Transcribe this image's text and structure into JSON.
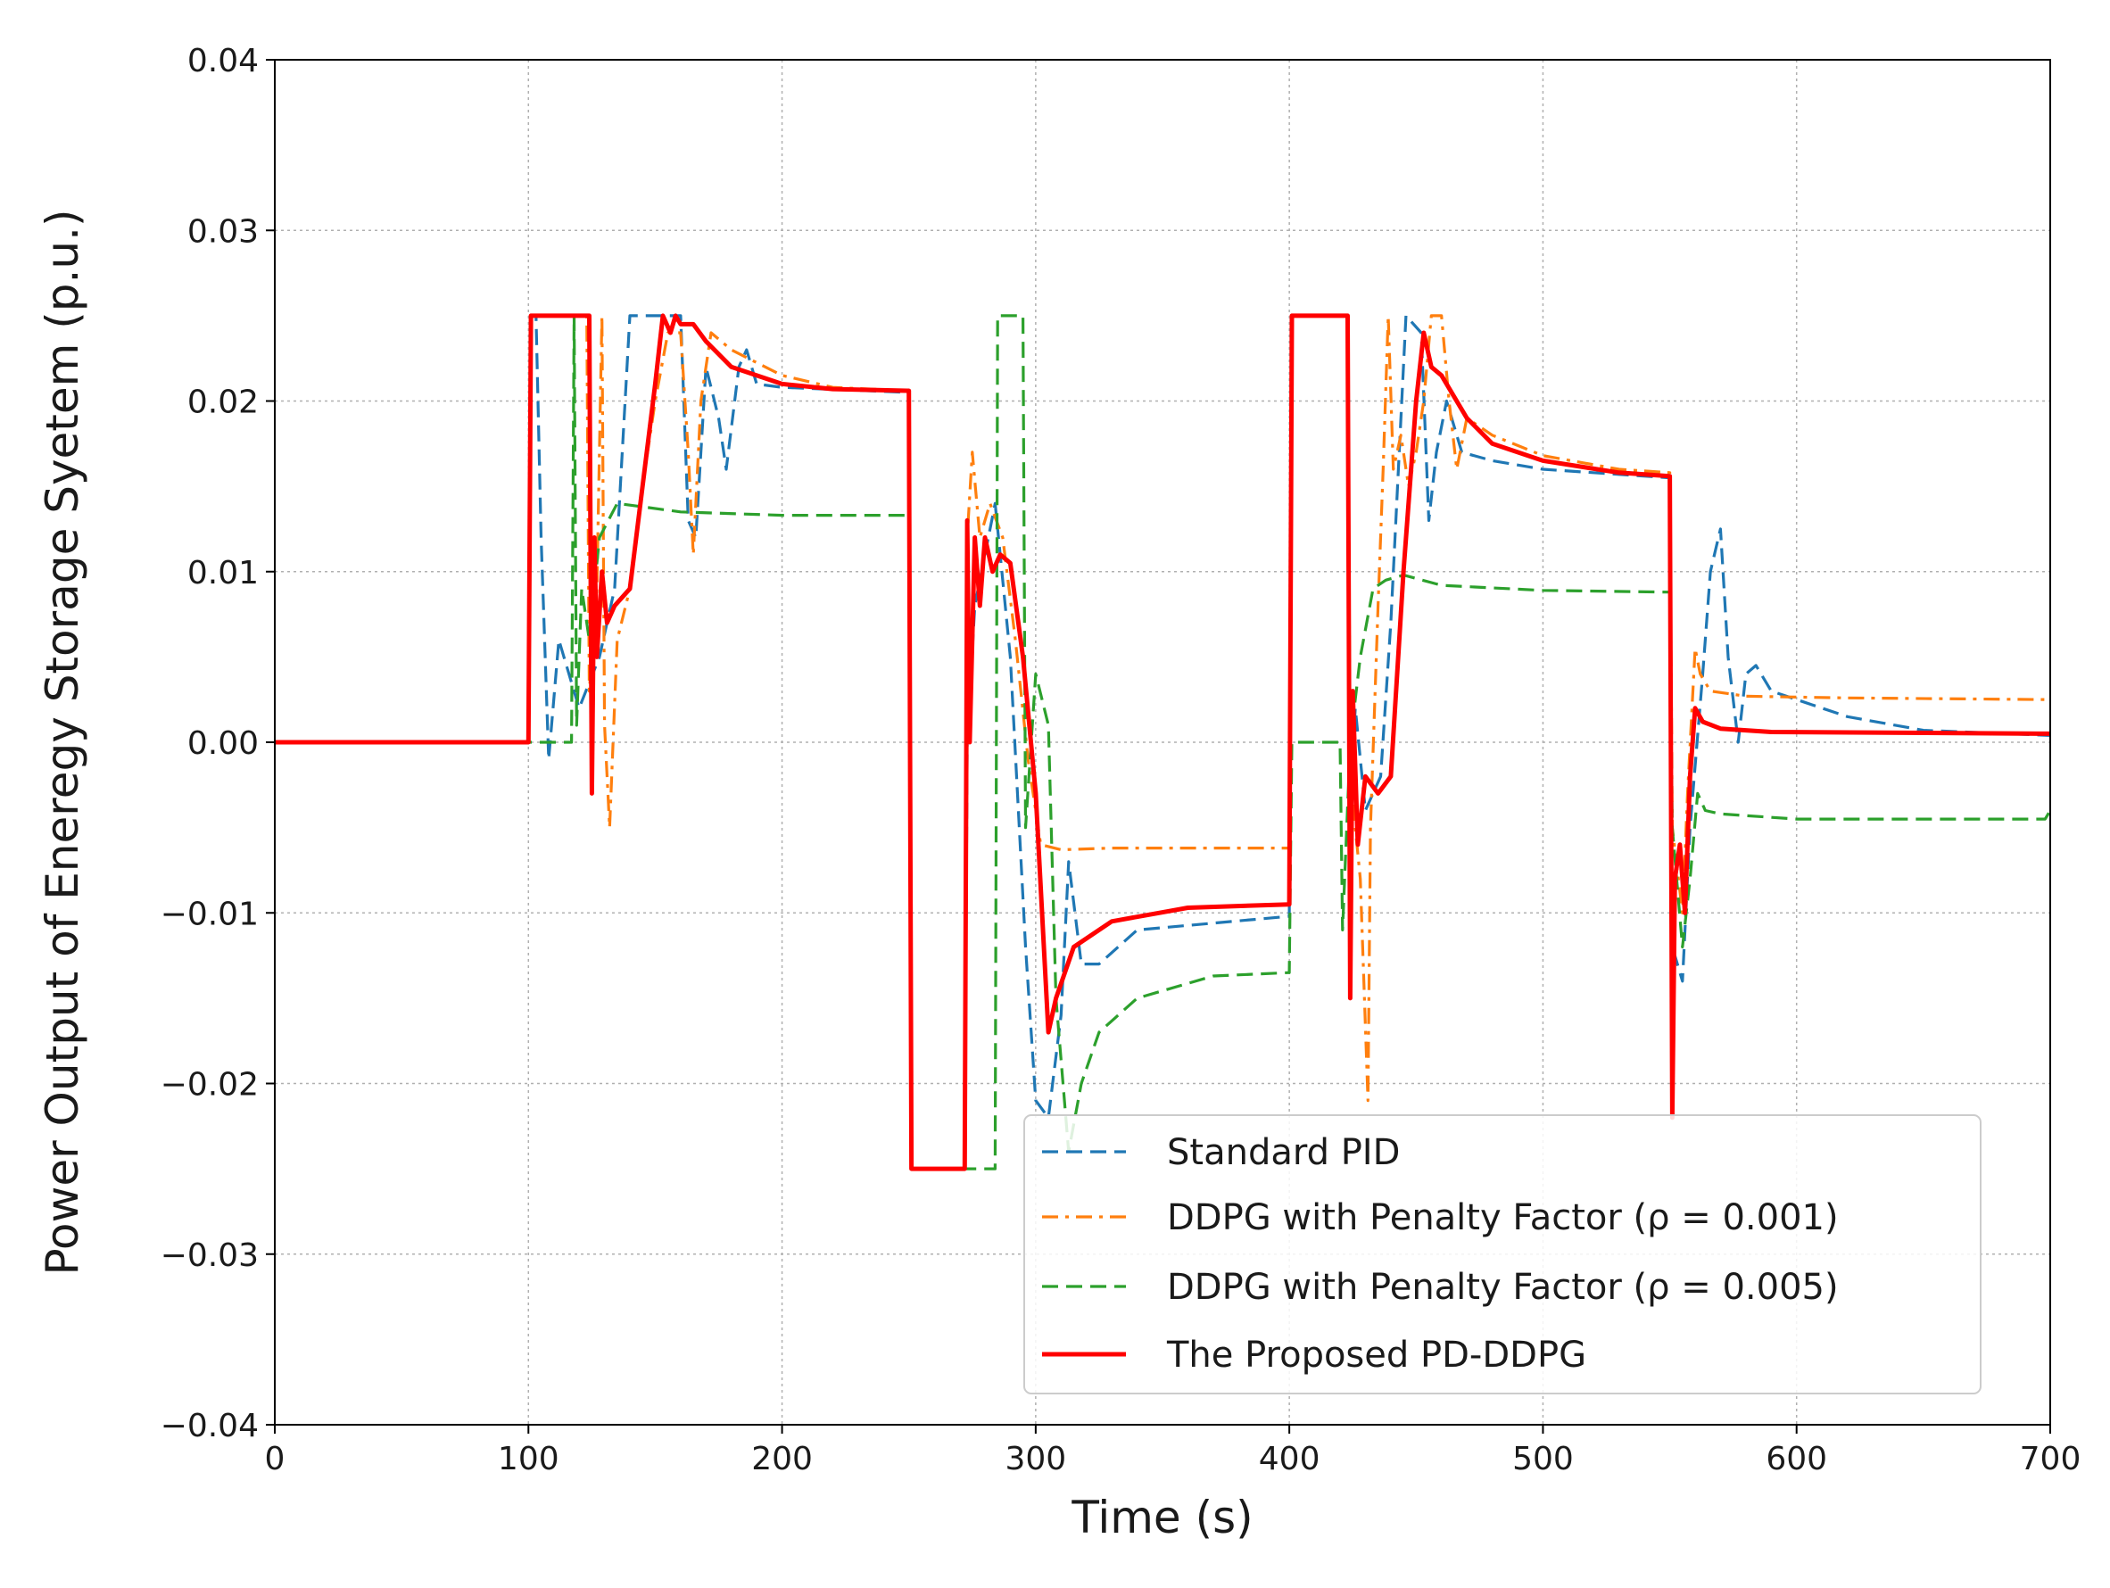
{
  "chart_data": {
    "type": "line",
    "title": "",
    "xlabel": "Time (s)",
    "ylabel": "Power Output of Eneregy Storage Syetem (p.u.)",
    "xlim": [
      0,
      700
    ],
    "ylim": [
      -0.04,
      0.04
    ],
    "x_ticks": [
      0,
      100,
      200,
      300,
      400,
      500,
      600,
      700
    ],
    "x_tick_labels": [
      "0",
      "100",
      "200",
      "300",
      "400",
      "500",
      "600",
      "700"
    ],
    "y_ticks": [
      -0.04,
      -0.03,
      -0.02,
      -0.01,
      0.0,
      0.01,
      0.02,
      0.03,
      0.04
    ],
    "y_tick_labels": [
      "−0.04",
      "−0.03",
      "−0.02",
      "−0.01",
      "0.00",
      "0.01",
      "0.02",
      "0.03",
      "0.04"
    ],
    "grid": true,
    "legend_position": "bottom-right",
    "series": [
      {
        "name": "Standard PID",
        "legend_label": "Standard PID",
        "color": "#1f77b4",
        "style": "dashed",
        "points": [
          [
            0,
            0
          ],
          [
            100,
            0
          ],
          [
            101,
            0.025
          ],
          [
            103,
            0.025
          ],
          [
            105,
            0.012
          ],
          [
            108,
            -0.001
          ],
          [
            112,
            0.006
          ],
          [
            120,
            0.002
          ],
          [
            128,
            0.005
          ],
          [
            134,
            0.009
          ],
          [
            140,
            0.025
          ],
          [
            160,
            0.025
          ],
          [
            163,
            0.013
          ],
          [
            166,
            0.012
          ],
          [
            170,
            0.022
          ],
          [
            175,
            0.019
          ],
          [
            178,
            0.016
          ],
          [
            183,
            0.022
          ],
          [
            186,
            0.023
          ],
          [
            190,
            0.021
          ],
          [
            200,
            0.0208
          ],
          [
            250,
            0.0205
          ],
          [
            251,
            -0.025
          ],
          [
            272,
            -0.025
          ],
          [
            273,
            0.0
          ],
          [
            276,
            0.008
          ],
          [
            280,
            0.011
          ],
          [
            284,
            0.014
          ],
          [
            290,
            0.005
          ],
          [
            296,
            -0.012
          ],
          [
            300,
            -0.021
          ],
          [
            305,
            -0.022
          ],
          [
            310,
            -0.016
          ],
          [
            313,
            -0.007
          ],
          [
            318,
            -0.013
          ],
          [
            325,
            -0.013
          ],
          [
            340,
            -0.011
          ],
          [
            400,
            -0.0102
          ],
          [
            401,
            0.025
          ],
          [
            423,
            0.025
          ],
          [
            424,
            -0.003
          ],
          [
            426,
            0.002
          ],
          [
            430,
            -0.004
          ],
          [
            436,
            -0.002
          ],
          [
            440,
            0.007
          ],
          [
            446,
            0.025
          ],
          [
            452,
            0.024
          ],
          [
            455,
            0.013
          ],
          [
            458,
            0.017
          ],
          [
            462,
            0.02
          ],
          [
            468,
            0.017
          ],
          [
            480,
            0.0165
          ],
          [
            500,
            0.016
          ],
          [
            550,
            0.0155
          ],
          [
            551,
            -0.012
          ],
          [
            555,
            -0.014
          ],
          [
            558,
            -0.005
          ],
          [
            563,
            0.004
          ],
          [
            566,
            0.01
          ],
          [
            570,
            0.0125
          ],
          [
            573,
            0.005
          ],
          [
            577,
            0.0
          ],
          [
            580,
            0.004
          ],
          [
            584,
            0.0045
          ],
          [
            590,
            0.003
          ],
          [
            620,
            0.0015
          ],
          [
            650,
            0.0007
          ],
          [
            700,
            0.0004
          ]
        ]
      },
      {
        "name": "DDPG with Penalty Factor (ρ = 0.001)",
        "legend_label": "DDPG with Penalty Factor (ρ = 0.001)",
        "color": "#ff7f0e",
        "style": "dashdot",
        "points": [
          [
            0,
            0
          ],
          [
            100,
            0
          ],
          [
            101,
            0.025
          ],
          [
            123,
            0.025
          ],
          [
            124,
            0.003
          ],
          [
            127,
            0.009
          ],
          [
            129,
            0.025
          ],
          [
            130,
            0.001
          ],
          [
            132,
            -0.005
          ],
          [
            135,
            0.006
          ],
          [
            140,
            0.009
          ],
          [
            145,
            0.015
          ],
          [
            150,
            0.02
          ],
          [
            155,
            0.024
          ],
          [
            160,
            0.024
          ],
          [
            163,
            0.017
          ],
          [
            165,
            0.011
          ],
          [
            168,
            0.02
          ],
          [
            172,
            0.024
          ],
          [
            180,
            0.023
          ],
          [
            200,
            0.0215
          ],
          [
            220,
            0.0208
          ],
          [
            250,
            0.0206
          ],
          [
            251,
            -0.025
          ],
          [
            272,
            -0.025
          ],
          [
            273,
            0.012
          ],
          [
            275,
            0.017
          ],
          [
            278,
            0.012
          ],
          [
            282,
            0.014
          ],
          [
            287,
            0.012
          ],
          [
            292,
            0.006
          ],
          [
            297,
            -0.001
          ],
          [
            302,
            -0.006
          ],
          [
            310,
            -0.0063
          ],
          [
            330,
            -0.0062
          ],
          [
            400,
            -0.0062
          ],
          [
            401,
            0.025
          ],
          [
            423,
            0.025
          ],
          [
            424,
            -0.002
          ],
          [
            428,
            -0.008
          ],
          [
            431,
            -0.021
          ],
          [
            432,
            -0.005
          ],
          [
            435,
            0.008
          ],
          [
            437,
            0.016
          ],
          [
            439,
            0.025
          ],
          [
            441,
            0.016
          ],
          [
            444,
            0.018
          ],
          [
            447,
            0.015
          ],
          [
            450,
            0.017
          ],
          [
            453,
            0.02
          ],
          [
            456,
            0.025
          ],
          [
            460,
            0.025
          ],
          [
            463,
            0.02
          ],
          [
            466,
            0.016
          ],
          [
            470,
            0.019
          ],
          [
            480,
            0.018
          ],
          [
            500,
            0.0168
          ],
          [
            530,
            0.016
          ],
          [
            550,
            0.0158
          ],
          [
            551,
            -0.005
          ],
          [
            555,
            -0.01
          ],
          [
            557,
            -0.003
          ],
          [
            560,
            0.0055
          ],
          [
            562,
            0.004
          ],
          [
            566,
            0.003
          ],
          [
            580,
            0.0027
          ],
          [
            620,
            0.0026
          ],
          [
            700,
            0.0025
          ]
        ]
      },
      {
        "name": "DDPG with Penalty Factor (ρ = 0.005)",
        "legend_label": "DDPG with Penalty Factor (ρ = 0.005)",
        "color": "#2ca02c",
        "style": "dashed",
        "points": [
          [
            0,
            0
          ],
          [
            100,
            0
          ],
          [
            117,
            0
          ],
          [
            118,
            0.025
          ],
          [
            119,
            0.001
          ],
          [
            121,
            0.009
          ],
          [
            124,
            0.006
          ],
          [
            128,
            0.012
          ],
          [
            135,
            0.014
          ],
          [
            160,
            0.0135
          ],
          [
            200,
            0.0133
          ],
          [
            250,
            0.0133
          ],
          [
            251,
            -0.025
          ],
          [
            284,
            -0.025
          ],
          [
            285,
            0.025
          ],
          [
            295,
            0.025
          ],
          [
            296,
            -0.005
          ],
          [
            300,
            0.004
          ],
          [
            305,
            0.001
          ],
          [
            308,
            -0.015
          ],
          [
            313,
            -0.024
          ],
          [
            318,
            -0.02
          ],
          [
            325,
            -0.017
          ],
          [
            340,
            -0.015
          ],
          [
            370,
            -0.0137
          ],
          [
            400,
            -0.0135
          ],
          [
            401,
            0.0
          ],
          [
            420,
            0.0
          ],
          [
            421,
            -0.011
          ],
          [
            424,
            0.0
          ],
          [
            428,
            0.005
          ],
          [
            433,
            0.009
          ],
          [
            438,
            0.0095
          ],
          [
            445,
            0.0098
          ],
          [
            460,
            0.0092
          ],
          [
            500,
            0.0089
          ],
          [
            550,
            0.0088
          ],
          [
            551,
            -0.005
          ],
          [
            555,
            -0.012
          ],
          [
            558,
            -0.008
          ],
          [
            561,
            -0.003
          ],
          [
            564,
            -0.004
          ],
          [
            570,
            -0.0042
          ],
          [
            600,
            -0.0045
          ],
          [
            698,
            -0.0045
          ],
          [
            700,
            -0.004
          ]
        ]
      },
      {
        "name": "The Proposed PD-DDPG",
        "legend_label": "The Proposed PD-DDPG",
        "color": "#ff0000",
        "style": "solid",
        "points": [
          [
            0,
            0
          ],
          [
            100,
            0
          ],
          [
            101,
            0.025
          ],
          [
            124,
            0.025
          ],
          [
            125,
            -0.003
          ],
          [
            126,
            0.012
          ],
          [
            127,
            0.005
          ],
          [
            129,
            0.01
          ],
          [
            131,
            0.007
          ],
          [
            134,
            0.008
          ],
          [
            140,
            0.009
          ],
          [
            145,
            0.015
          ],
          [
            150,
            0.021
          ],
          [
            153,
            0.025
          ],
          [
            156,
            0.024
          ],
          [
            158,
            0.025
          ],
          [
            160,
            0.0245
          ],
          [
            165,
            0.0245
          ],
          [
            170,
            0.0235
          ],
          [
            180,
            0.022
          ],
          [
            200,
            0.021
          ],
          [
            220,
            0.0207
          ],
          [
            250,
            0.0206
          ],
          [
            251,
            -0.025
          ],
          [
            272,
            -0.025
          ],
          [
            273,
            0.013
          ],
          [
            274,
            0.0
          ],
          [
            276,
            0.012
          ],
          [
            278,
            0.008
          ],
          [
            280,
            0.012
          ],
          [
            283,
            0.01
          ],
          [
            286,
            0.011
          ],
          [
            290,
            0.0105
          ],
          [
            295,
            0.005
          ],
          [
            300,
            -0.003
          ],
          [
            305,
            -0.017
          ],
          [
            308,
            -0.015
          ],
          [
            315,
            -0.012
          ],
          [
            330,
            -0.0105
          ],
          [
            360,
            -0.0097
          ],
          [
            400,
            -0.0095
          ],
          [
            401,
            0.025
          ],
          [
            423,
            0.025
          ],
          [
            424,
            -0.015
          ],
          [
            425,
            0.003
          ],
          [
            427,
            -0.006
          ],
          [
            430,
            -0.002
          ],
          [
            435,
            -0.003
          ],
          [
            440,
            -0.002
          ],
          [
            445,
            0.01
          ],
          [
            450,
            0.02
          ],
          [
            453,
            0.024
          ],
          [
            456,
            0.022
          ],
          [
            460,
            0.0215
          ],
          [
            470,
            0.019
          ],
          [
            480,
            0.0175
          ],
          [
            500,
            0.0165
          ],
          [
            530,
            0.0158
          ],
          [
            550,
            0.0156
          ],
          [
            551,
            -0.022
          ],
          [
            552,
            -0.008
          ],
          [
            554,
            -0.006
          ],
          [
            556,
            -0.01
          ],
          [
            558,
            -0.002
          ],
          [
            560,
            0.002
          ],
          [
            563,
            0.0012
          ],
          [
            570,
            0.0008
          ],
          [
            590,
            0.0006
          ],
          [
            700,
            0.0005
          ]
        ]
      }
    ]
  }
}
